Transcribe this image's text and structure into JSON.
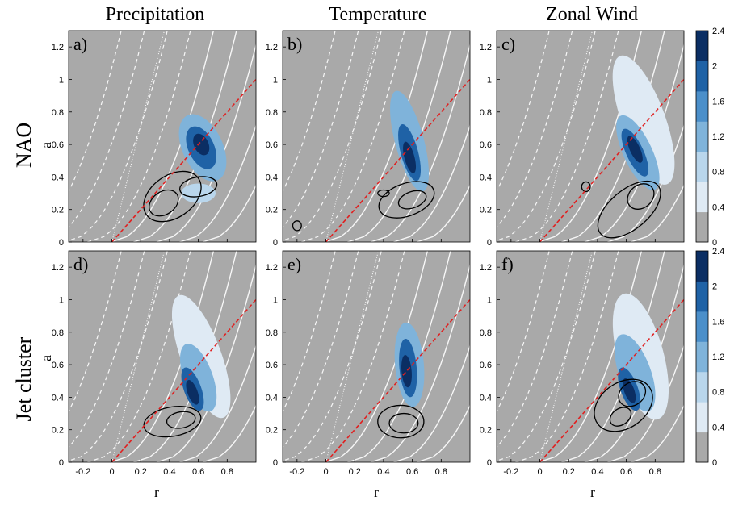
{
  "figure": {
    "column_titles": [
      "Precipitation",
      "Temperature",
      "Zonal Wind"
    ],
    "row_labels": [
      "NAO",
      "Jet cluster"
    ],
    "x_axis_label": "r",
    "y_axis_label": "a"
  },
  "chart_data": {
    "type": "heatmap",
    "xlim": [
      -0.3,
      1.0
    ],
    "ylim": [
      0,
      1.3
    ],
    "x_ticks": [
      "-0.2",
      "0",
      "0.2",
      "0.4",
      "0.6",
      "0.8"
    ],
    "y_ticks": [
      "0",
      "0.2",
      "0.4",
      "0.6",
      "0.8",
      "1",
      "1.2"
    ],
    "colorbar": {
      "ticks": [
        "0",
        "0.4",
        "0.8",
        "1.2",
        "1.6",
        "2",
        "2.4"
      ],
      "levels": [
        0,
        0.4,
        0.8,
        1.2,
        1.6,
        2.0,
        2.4
      ],
      "colors": [
        "#a9a9a9",
        "#dfeaf4",
        "#b9d6ec",
        "#7fb3da",
        "#4b8fca",
        "#1f62a6",
        "#0b2e63"
      ]
    },
    "colors": {
      "background": "#a9a9a9",
      "contour_lines": "#000000",
      "reference_curves": "#ffffff",
      "diagonal": "#e02020"
    },
    "reference_line": {
      "slope": 1,
      "style": "red dashed",
      "from": [
        0,
        0
      ],
      "to": [
        1.0,
        1.0
      ]
    },
    "panels": [
      {
        "letter": "a)",
        "row": "NAO",
        "column": "Precipitation",
        "blobs": [
          {
            "cx": 0.63,
            "cy": 0.58,
            "rx": 0.14,
            "ry": 0.22,
            "rot": -25,
            "level": 3
          },
          {
            "cx": 0.62,
            "cy": 0.58,
            "rx": 0.09,
            "ry": 0.14,
            "rot": -25,
            "level": 5
          },
          {
            "cx": 0.62,
            "cy": 0.6,
            "rx": 0.05,
            "ry": 0.07,
            "rot": -25,
            "level": 6
          },
          {
            "cx": 0.6,
            "cy": 0.3,
            "rx": 0.12,
            "ry": 0.06,
            "rot": 0,
            "level": 2
          }
        ],
        "contours": [
          {
            "cx": 0.42,
            "cy": 0.28,
            "rx": 0.22,
            "ry": 0.13,
            "rot": -35
          },
          {
            "cx": 0.36,
            "cy": 0.24,
            "rx": 0.11,
            "ry": 0.07,
            "rot": -35
          },
          {
            "cx": 0.6,
            "cy": 0.34,
            "rx": 0.13,
            "ry": 0.06,
            "rot": -10
          }
        ]
      },
      {
        "letter": "b)",
        "row": "NAO",
        "column": "Temperature",
        "blobs": [
          {
            "cx": 0.58,
            "cy": 0.62,
            "rx": 0.1,
            "ry": 0.32,
            "rot": -15,
            "level": 3
          },
          {
            "cx": 0.58,
            "cy": 0.55,
            "rx": 0.06,
            "ry": 0.18,
            "rot": -15,
            "level": 5
          },
          {
            "cx": 0.58,
            "cy": 0.52,
            "rx": 0.035,
            "ry": 0.1,
            "rot": -15,
            "level": 6
          }
        ],
        "contours": [
          {
            "cx": 0.56,
            "cy": 0.26,
            "rx": 0.2,
            "ry": 0.1,
            "rot": -20
          },
          {
            "cx": 0.6,
            "cy": 0.26,
            "rx": 0.1,
            "ry": 0.05,
            "rot": -20
          },
          {
            "cx": 0.4,
            "cy": 0.3,
            "rx": 0.04,
            "ry": 0.02,
            "rot": 0
          },
          {
            "cx": -0.2,
            "cy": 0.1,
            "rx": 0.03,
            "ry": 0.03,
            "rot": 0
          }
        ]
      },
      {
        "letter": "c)",
        "row": "NAO",
        "column": "Zonal Wind",
        "blobs": [
          {
            "cx": 0.72,
            "cy": 0.75,
            "rx": 0.15,
            "ry": 0.42,
            "rot": -20,
            "level": 1
          },
          {
            "cx": 0.68,
            "cy": 0.55,
            "rx": 0.1,
            "ry": 0.25,
            "rot": -25,
            "level": 3
          },
          {
            "cx": 0.66,
            "cy": 0.55,
            "rx": 0.06,
            "ry": 0.16,
            "rot": -25,
            "level": 5
          },
          {
            "cx": 0.66,
            "cy": 0.57,
            "rx": 0.035,
            "ry": 0.09,
            "rot": -25,
            "level": 6
          }
        ],
        "contours": [
          {
            "cx": 0.62,
            "cy": 0.2,
            "rx": 0.26,
            "ry": 0.12,
            "rot": -40
          },
          {
            "cx": 0.7,
            "cy": 0.28,
            "rx": 0.1,
            "ry": 0.07,
            "rot": -40
          },
          {
            "cx": 0.32,
            "cy": 0.34,
            "rx": 0.03,
            "ry": 0.03,
            "rot": 0
          }
        ]
      },
      {
        "letter": "d)",
        "row": "Jet cluster",
        "column": "Precipitation",
        "blobs": [
          {
            "cx": 0.62,
            "cy": 0.65,
            "rx": 0.14,
            "ry": 0.4,
            "rot": -20,
            "level": 1
          },
          {
            "cx": 0.6,
            "cy": 0.52,
            "rx": 0.1,
            "ry": 0.22,
            "rot": -20,
            "level": 3
          },
          {
            "cx": 0.56,
            "cy": 0.45,
            "rx": 0.06,
            "ry": 0.14,
            "rot": -20,
            "level": 5
          },
          {
            "cx": 0.56,
            "cy": 0.43,
            "rx": 0.035,
            "ry": 0.08,
            "rot": -20,
            "level": 6
          }
        ],
        "contours": [
          {
            "cx": 0.42,
            "cy": 0.25,
            "rx": 0.2,
            "ry": 0.09,
            "rot": -10
          },
          {
            "cx": 0.48,
            "cy": 0.26,
            "rx": 0.1,
            "ry": 0.05,
            "rot": -10
          }
        ]
      },
      {
        "letter": "e)",
        "row": "Jet cluster",
        "column": "Temperature",
        "blobs": [
          {
            "cx": 0.58,
            "cy": 0.6,
            "rx": 0.1,
            "ry": 0.26,
            "rot": -5,
            "level": 3
          },
          {
            "cx": 0.57,
            "cy": 0.58,
            "rx": 0.06,
            "ry": 0.18,
            "rot": -5,
            "level": 5
          },
          {
            "cx": 0.56,
            "cy": 0.56,
            "rx": 0.035,
            "ry": 0.1,
            "rot": -5,
            "level": 6
          }
        ],
        "contours": [
          {
            "cx": 0.52,
            "cy": 0.25,
            "rx": 0.16,
            "ry": 0.1,
            "rot": 0
          },
          {
            "cx": 0.54,
            "cy": 0.24,
            "rx": 0.1,
            "ry": 0.06,
            "rot": 0
          }
        ]
      },
      {
        "letter": "f)",
        "row": "Jet cluster",
        "column": "Zonal Wind",
        "blobs": [
          {
            "cx": 0.7,
            "cy": 0.65,
            "rx": 0.16,
            "ry": 0.4,
            "rot": -15,
            "level": 1
          },
          {
            "cx": 0.66,
            "cy": 0.55,
            "rx": 0.11,
            "ry": 0.25,
            "rot": -20,
            "level": 3
          },
          {
            "cx": 0.62,
            "cy": 0.45,
            "rx": 0.06,
            "ry": 0.14,
            "rot": -20,
            "level": 5
          },
          {
            "cx": 0.62,
            "cy": 0.44,
            "rx": 0.035,
            "ry": 0.08,
            "rot": -20,
            "level": 6
          }
        ],
        "contours": [
          {
            "cx": 0.58,
            "cy": 0.35,
            "rx": 0.22,
            "ry": 0.14,
            "rot": -35
          },
          {
            "cx": 0.64,
            "cy": 0.42,
            "rx": 0.1,
            "ry": 0.07,
            "rot": -35
          },
          {
            "cx": 0.56,
            "cy": 0.28,
            "rx": 0.08,
            "ry": 0.05,
            "rot": -35
          }
        ]
      }
    ]
  }
}
